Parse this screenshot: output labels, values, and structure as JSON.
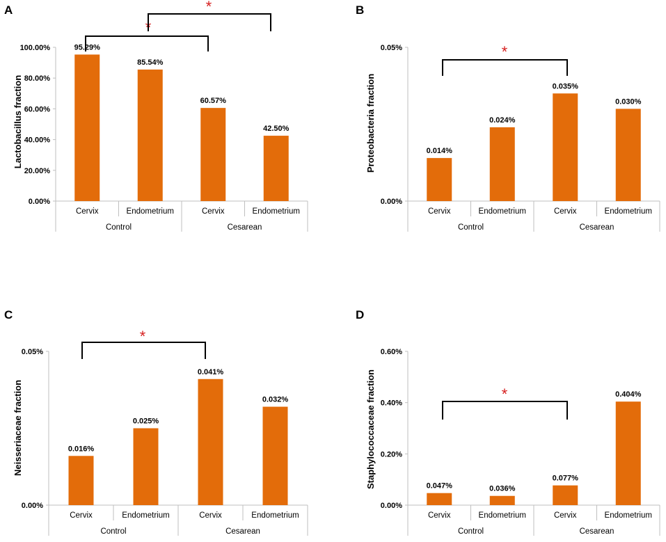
{
  "bar_color": "#e36c0a",
  "star_color": "#d62020",
  "chart_data": [
    {
      "type": "bar",
      "panel": "A",
      "ylabel": "Lactobacillus fraction",
      "ylim": [
        0,
        100
      ],
      "ytick_values": [
        0,
        20,
        40,
        60,
        80,
        100
      ],
      "ytick_labels": [
        "0.00%",
        "20.00%",
        "40.00%",
        "60.00%",
        "80.00%",
        "100.00%"
      ],
      "categories": [
        "Cervix",
        "Endometrium",
        "Cervix",
        "Endometrium"
      ],
      "groups": [
        "Control",
        "Cesarean"
      ],
      "values": [
        95.29,
        85.54,
        60.57,
        42.5
      ],
      "value_labels": [
        "95.29%",
        "85.54%",
        "60.57%",
        "42.50%"
      ],
      "significance": [
        {
          "from": 0,
          "to": 2,
          "label": "*"
        },
        {
          "from": 1,
          "to": 3,
          "label": "*"
        }
      ]
    },
    {
      "type": "bar",
      "panel": "B",
      "ylabel": "Proteobacteria  fraction",
      "ylim": [
        0,
        0.05
      ],
      "ytick_values": [
        0,
        0.05
      ],
      "ytick_labels": [
        "0.00%",
        "0.05%"
      ],
      "categories": [
        "Cervix",
        "Endometrium",
        "Cervix",
        "Endometrium"
      ],
      "groups": [
        "Control",
        "Cesarean"
      ],
      "values": [
        0.014,
        0.024,
        0.035,
        0.03
      ],
      "value_labels": [
        "0.014%",
        "0.024%",
        "0.035%",
        "0.030%"
      ],
      "significance": [
        {
          "from": 0,
          "to": 2,
          "label": "*"
        }
      ]
    },
    {
      "type": "bar",
      "panel": "C",
      "ylabel": "Neisseriaceae  fraction",
      "ylim": [
        0,
        0.05
      ],
      "ytick_values": [
        0,
        0.05
      ],
      "ytick_labels": [
        "0.00%",
        "0.05%"
      ],
      "categories": [
        "Cervix",
        "Endometrium",
        "Cervix",
        "Endometrium"
      ],
      "groups": [
        "Control",
        "Cesarean"
      ],
      "values": [
        0.016,
        0.025,
        0.041,
        0.032
      ],
      "value_labels": [
        "0.016%",
        "0.025%",
        "0.041%",
        "0.032%"
      ],
      "significance": [
        {
          "from": 0,
          "to": 2,
          "label": "*"
        }
      ]
    },
    {
      "type": "bar",
      "panel": "D",
      "ylabel": "Staphylococcaceae  fraction",
      "ylim": [
        0,
        0.6
      ],
      "ytick_values": [
        0,
        0.2,
        0.4,
        0.6
      ],
      "ytick_labels": [
        "0.00%",
        "0.20%",
        "0.40%",
        "0.60%"
      ],
      "categories": [
        "Cervix",
        "Endometrium",
        "Cervix",
        "Endometrium"
      ],
      "groups": [
        "Control",
        "Cesarean"
      ],
      "values": [
        0.047,
        0.036,
        0.077,
        0.404
      ],
      "value_labels": [
        "0.047%",
        "0.036%",
        "0.077%",
        "0.404%"
      ],
      "significance": [
        {
          "from": 0,
          "to": 2,
          "label": "*"
        }
      ]
    }
  ]
}
